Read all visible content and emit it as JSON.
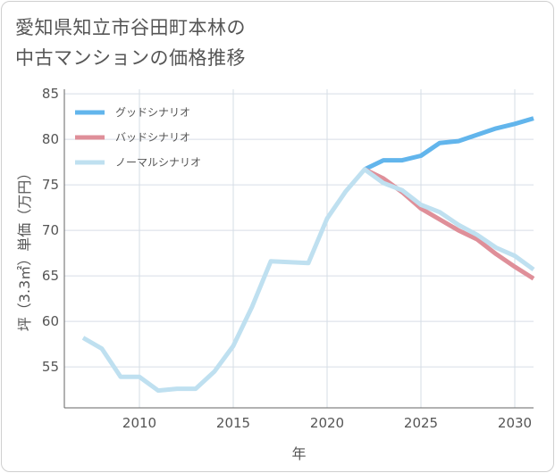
{
  "title_lines": [
    "愛知県知立市谷田町本林の",
    "中古マンションの価格推移"
  ],
  "chart_data": {
    "type": "line",
    "title": "愛知県知立市谷田町本林の中古マンションの価格推移",
    "xlabel": "年",
    "ylabel": "坪（3.3㎡）単価（万円）",
    "xlim": [
      2006,
      2031
    ],
    "ylim": [
      50.5,
      85.5
    ],
    "xticks": [
      2010,
      2015,
      2020,
      2025,
      2030
    ],
    "yticks": [
      55,
      60,
      65,
      70,
      75,
      80,
      85
    ],
    "grid": true,
    "legend_position": "top-left",
    "series": [
      {
        "name": "グッドシナリオ",
        "color": "#62b5ec",
        "x": [
          2022,
          2023,
          2024,
          2025,
          2026,
          2027,
          2028,
          2029,
          2030,
          2031
        ],
        "y": [
          76.7,
          77.7,
          77.7,
          78.2,
          79.6,
          79.8,
          80.5,
          81.2,
          81.7,
          82.3
        ]
      },
      {
        "name": "バッドシナリオ",
        "color": "#df8f99",
        "x": [
          2022,
          2023,
          2024,
          2025,
          2026,
          2027,
          2028,
          2029,
          2030,
          2031
        ],
        "y": [
          76.7,
          75.7,
          74.2,
          72.4,
          71.2,
          70.0,
          69.0,
          67.4,
          66.0,
          64.7
        ]
      },
      {
        "name": "ノーマルシナリオ",
        "color": "#bfe0f0",
        "x": [
          2007,
          2008,
          2009,
          2010,
          2011,
          2012,
          2013,
          2014,
          2015,
          2016,
          2017,
          2018,
          2019,
          2020,
          2021,
          2022,
          2023,
          2024,
          2025,
          2026,
          2027,
          2028,
          2029,
          2030,
          2031
        ],
        "y": [
          58.2,
          57.0,
          53.9,
          53.9,
          52.4,
          52.6,
          52.6,
          54.5,
          57.3,
          61.6,
          66.6,
          66.5,
          66.4,
          71.3,
          74.3,
          76.7,
          75.2,
          74.4,
          72.8,
          72.0,
          70.6,
          69.5,
          68.1,
          67.2,
          65.7
        ]
      }
    ]
  }
}
